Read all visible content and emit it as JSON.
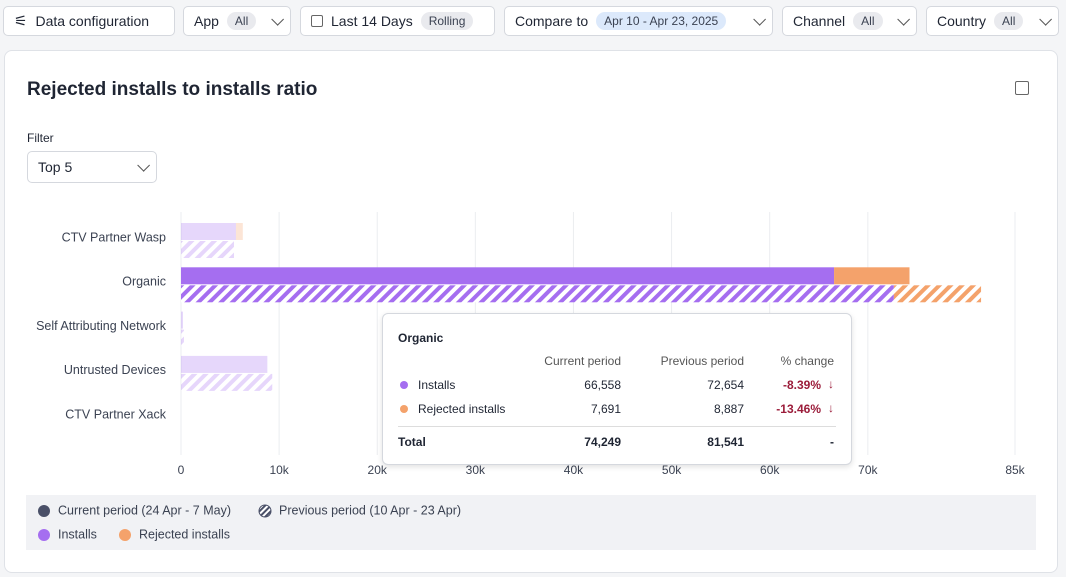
{
  "toolbar": {
    "data_config": "Data configuration",
    "filters": [
      {
        "label": "App",
        "badge": "All"
      },
      {
        "label": "Last 14 Days",
        "badge": "Rolling"
      },
      {
        "label": "Compare to",
        "badge": "Apr 10 - Apr 23, 2025"
      },
      {
        "label": "Channel",
        "badge": "All"
      },
      {
        "label": "Country",
        "badge": "All"
      }
    ]
  },
  "card": {
    "filter_label": "Filter",
    "filter_value": "Top 5"
  },
  "chart_data": {
    "type": "bar",
    "orientation": "horizontal",
    "stacked": true,
    "title": "Rejected installs to installs ratio",
    "categories": [
      "CTV Partner Wasp",
      "Organic",
      "Self Attributing Network",
      "Untrusted Devices",
      "CTV Partner Xack"
    ],
    "periods": [
      "Current period (24 Apr - 7 May)",
      "Previous period (10 Apr - 23 Apr)"
    ],
    "series": [
      {
        "name": "Installs",
        "color": "#a56ef0",
        "values": [
          5600,
          66558,
          200,
          8800,
          0
        ],
        "previous_values": [
          5400,
          72654,
          300,
          9300,
          0
        ]
      },
      {
        "name": "Rejected installs",
        "color": "#f4a26b",
        "values": [
          700,
          7691,
          0,
          0,
          0
        ],
        "previous_values": [
          0,
          8887,
          0,
          0,
          0
        ]
      }
    ],
    "xlim": [
      0,
      85000
    ],
    "xticks": [
      0,
      {
        "value": 10000,
        "label": "10k"
      },
      {
        "value": 20000,
        "label": "20k"
      },
      {
        "value": 30000,
        "label": "30k"
      },
      {
        "value": 40000,
        "label": "40k"
      },
      {
        "value": 50000,
        "label": "50k"
      },
      {
        "value": 60000,
        "label": "60k"
      },
      {
        "value": 70000,
        "label": "70k"
      },
      {
        "value": 85000,
        "label": "85k"
      }
    ],
    "grid": true,
    "tooltip": {
      "headers": [
        "Current period",
        "Previous period",
        "% change"
      ],
      "rows": [
        {
          "current": "66,558",
          "previous": "72,654",
          "change": "-8.39%"
        },
        {
          "current": "7,691",
          "previous": "8,887",
          "change": "-13.46%"
        }
      ],
      "total": {
        "label": "Total",
        "current": "74,249",
        "previous": "81,541",
        "change": "-"
      }
    }
  }
}
